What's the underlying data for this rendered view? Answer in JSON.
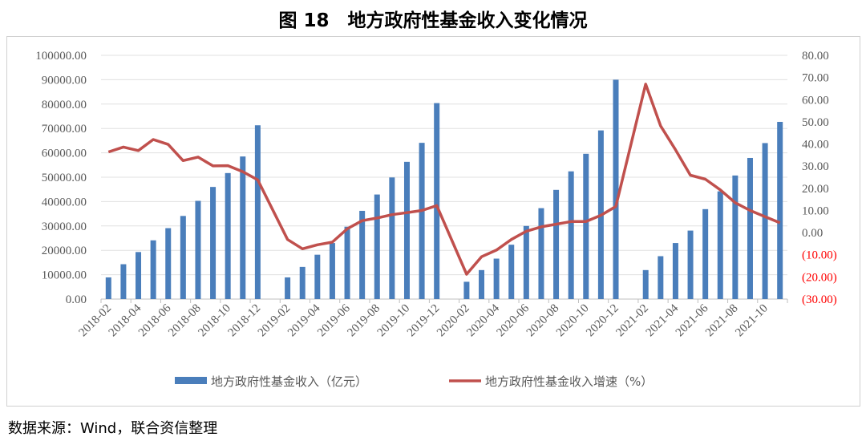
{
  "title": "图 18　地方政府性基金收入变化情况",
  "source": "数据来源：Wind，联合资信整理",
  "chart_data": {
    "type": "bar+line",
    "categories": [
      "2018-02",
      "2018-03",
      "2018-04",
      "2018-05",
      "2018-06",
      "2018-07",
      "2018-08",
      "2018-09",
      "2018-10",
      "2018-11",
      "2018-12",
      "2019-01",
      "2019-02",
      "2019-03",
      "2019-04",
      "2019-05",
      "2019-06",
      "2019-07",
      "2019-08",
      "2019-09",
      "2019-10",
      "2019-11",
      "2019-12",
      "2020-01",
      "2020-02",
      "2020-03",
      "2020-04",
      "2020-05",
      "2020-06",
      "2020-07",
      "2020-08",
      "2020-09",
      "2020-10",
      "2020-11",
      "2020-12",
      "2021-01",
      "2021-02",
      "2021-03",
      "2021-04",
      "2021-05",
      "2021-06",
      "2021-07",
      "2021-08",
      "2021-09",
      "2021-10",
      "2021-11"
    ],
    "tick_labels": [
      "2018-02",
      "2018-04",
      "2018-06",
      "2018-08",
      "2018-10",
      "2018-12",
      "2019-02",
      "2019-04",
      "2019-06",
      "2019-08",
      "2019-10",
      "2019-12",
      "2020-02",
      "2020-04",
      "2020-06",
      "2020-08",
      "2020-10",
      "2020-12",
      "2021-02",
      "2021-04",
      "2021-06",
      "2021-08",
      "2021-10"
    ],
    "series": [
      {
        "name": "地方政府性基金收入（亿元）",
        "type": "bar",
        "axis": "left",
        "color": "#4a7ebb",
        "values": [
          8900,
          14300,
          19300,
          24100,
          29100,
          34100,
          40300,
          46000,
          51700,
          58500,
          71300,
          null,
          8900,
          13200,
          18200,
          23000,
          29700,
          36200,
          42900,
          49900,
          56300,
          64100,
          80400,
          null,
          7100,
          11900,
          16600,
          22300,
          30000,
          37300,
          44800,
          52400,
          59600,
          69200,
          90000,
          null,
          11900,
          17600,
          23000,
          28100,
          36900,
          44200,
          50700,
          57900,
          64000,
          72700
        ]
      },
      {
        "name": "地方政府性基金收入增速（%）",
        "type": "line",
        "axis": "right",
        "color": "#c0504d",
        "values": [
          36.4,
          38.6,
          37.0,
          42.0,
          39.8,
          32.5,
          34.1,
          30.1,
          30.2,
          27.5,
          23.8,
          null,
          -3.1,
          -7.3,
          -5.5,
          -4.3,
          1.7,
          5.4,
          6.6,
          8.1,
          9.0,
          10.0,
          12.2,
          null,
          -18.8,
          -10.9,
          -7.9,
          -3.1,
          0.6,
          2.6,
          3.8,
          5.0,
          5.0,
          7.8,
          11.8,
          null,
          67.0,
          48.2,
          37.4,
          25.9,
          24.1,
          19.3,
          13.5,
          10.0,
          7.2,
          4.4
        ]
      }
    ],
    "y_left": {
      "min": 0,
      "max": 100000,
      "step": 10000,
      "tick_labels": [
        "0.00",
        "10000.00",
        "20000.00",
        "30000.00",
        "40000.00",
        "50000.00",
        "60000.00",
        "70000.00",
        "80000.00",
        "90000.00",
        "100000.00"
      ]
    },
    "y_right": {
      "min": -30,
      "max": 80,
      "step": 10,
      "tick_labels": [
        "(30.00)",
        "(20.00)",
        "(10.00)",
        "0.00",
        "10.00",
        "20.00",
        "30.00",
        "40.00",
        "50.00",
        "60.00",
        "70.00",
        "80.00"
      ],
      "negative_color": "#ff0000"
    },
    "grid": true,
    "legend": "bottom"
  }
}
